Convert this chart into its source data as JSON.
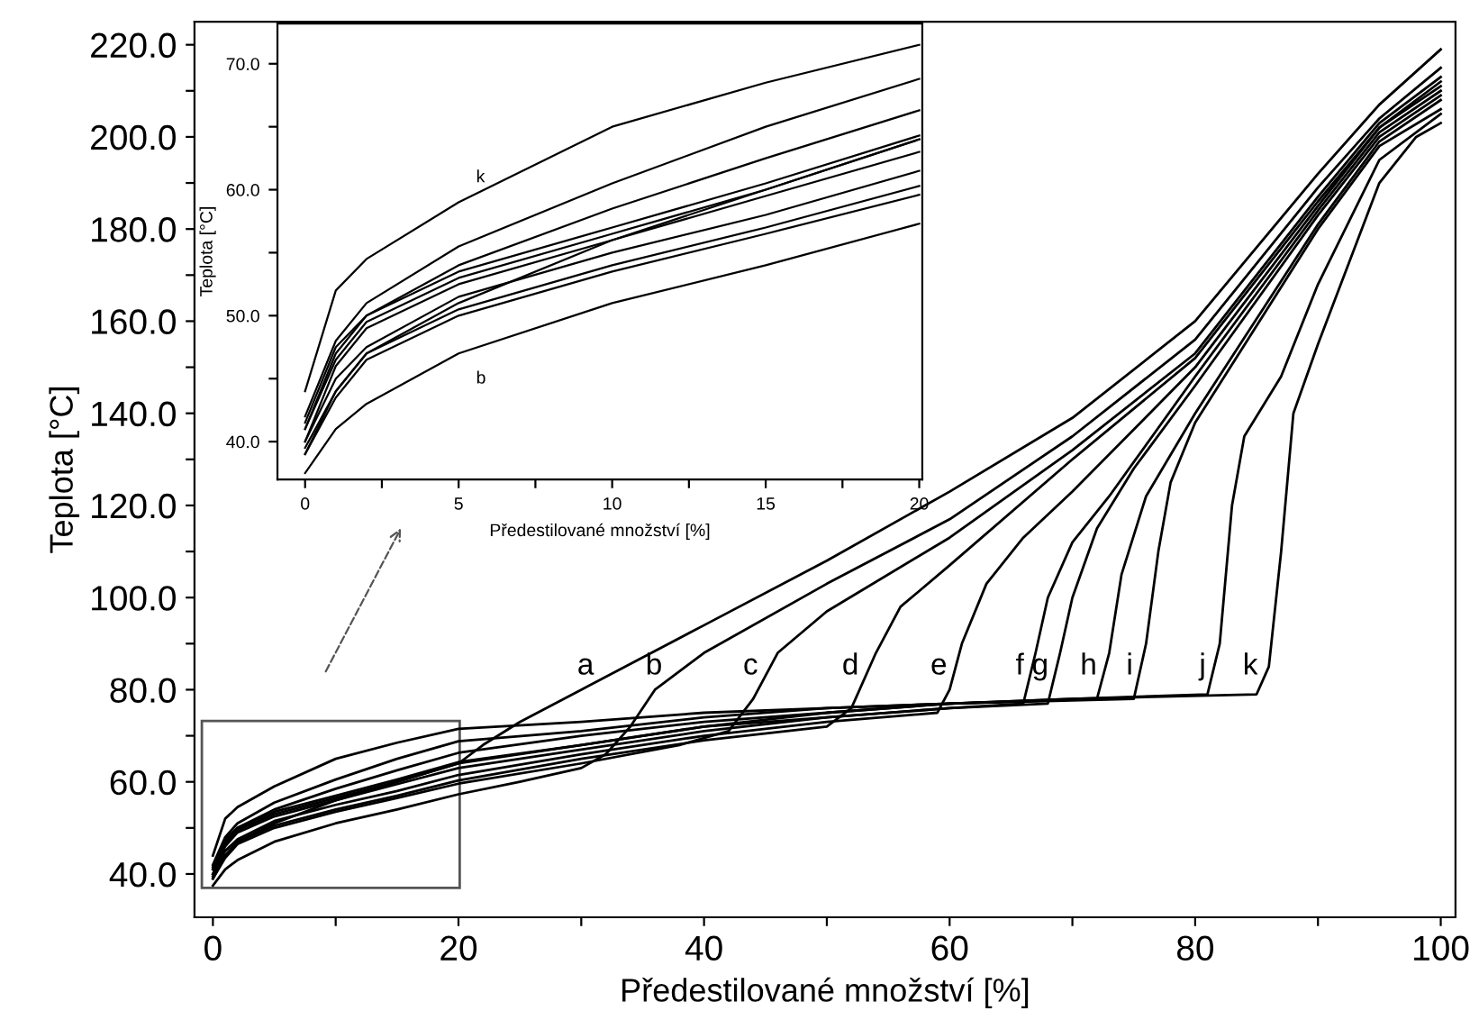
{
  "chart_data": [
    {
      "type": "line",
      "xlabel": "Předestilované množství [%]",
      "ylabel": "Teplota [°C]",
      "xlim": [
        -1.5,
        101.2
      ],
      "ylim": [
        30.6,
        225
      ],
      "xticks": [
        0,
        {
          "value": 10,
          "label": null
        },
        20,
        {
          "value": 30,
          "label": null
        },
        40,
        {
          "value": 50,
          "label": null
        },
        60,
        {
          "value": 70,
          "label": null
        },
        80,
        {
          "value": 90,
          "label": null
        },
        100
      ],
      "yticks": [
        {
          "value": 40,
          "label": "40.0"
        },
        {
          "value": 50,
          "label": null
        },
        {
          "value": 60,
          "label": "60.0"
        },
        {
          "value": 70,
          "label": null
        },
        {
          "value": 80,
          "label": "80.0"
        },
        {
          "value": 90,
          "label": null
        },
        {
          "value": 100,
          "label": "100.0"
        },
        {
          "value": 110,
          "label": null
        },
        {
          "value": 120,
          "label": "120.0"
        },
        {
          "value": 130,
          "label": null
        },
        {
          "value": 140,
          "label": "140.0"
        },
        {
          "value": 150,
          "label": null
        },
        {
          "value": 160,
          "label": "160.0"
        },
        {
          "value": 170,
          "label": null
        },
        {
          "value": 180,
          "label": "180.0"
        },
        {
          "value": 190,
          "label": null
        },
        {
          "value": 200,
          "label": "200.0"
        },
        {
          "value": 210,
          "label": null
        },
        {
          "value": 220,
          "label": "220.0"
        }
      ],
      "grid": false,
      "legend": false,
      "marker": "none",
      "line_style": "solid",
      "series": [
        {
          "name": "a",
          "color": "#000000",
          "x": [
            0,
            1,
            2,
            5,
            10,
            15,
            20,
            22,
            25,
            30,
            40,
            50,
            60,
            70,
            80,
            85,
            90,
            95,
            100
          ],
          "values": [
            39,
            44,
            47,
            51,
            56,
            60,
            64,
            68,
            73,
            80,
            94,
            108,
            123,
            139,
            160,
            176,
            192,
            207,
            219
          ]
        },
        {
          "name": "b",
          "color": "#000000",
          "x": [
            0,
            1,
            2,
            5,
            10,
            15,
            20,
            25,
            30,
            32,
            34,
            36,
            40,
            50,
            60,
            70,
            80,
            90,
            95,
            100
          ],
          "values": [
            37.5,
            41,
            43,
            47,
            51,
            54,
            57.3,
            60,
            63,
            66,
            72,
            80,
            88,
            103,
            117,
            135,
            156,
            189,
            204,
            215
          ]
        },
        {
          "name": "c",
          "color": "#000000",
          "x": [
            0,
            1,
            2,
            5,
            10,
            15,
            20,
            30,
            38,
            42,
            44,
            46,
            50,
            60,
            70,
            80,
            90,
            95,
            100
          ],
          "values": [
            39,
            43.5,
            46.5,
            50,
            53.5,
            56.5,
            59.6,
            64,
            68,
            71,
            78,
            88,
            97,
            113,
            132,
            153,
            187,
            203,
            213
          ]
        },
        {
          "name": "d",
          "color": "#000000",
          "x": [
            0,
            1,
            2,
            5,
            10,
            15,
            20,
            30,
            40,
            50,
            52,
            54,
            56,
            60,
            70,
            80,
            90,
            95,
            100
          ],
          "values": [
            39.5,
            44,
            47,
            50.5,
            54,
            57,
            60.3,
            65,
            69,
            72,
            76,
            88,
            98,
            107,
            130,
            152,
            186,
            202,
            212
          ]
        },
        {
          "name": "e",
          "color": "#000000",
          "x": [
            0,
            1,
            2,
            5,
            10,
            15,
            20,
            30,
            40,
            50,
            59,
            60,
            61,
            63,
            66,
            70,
            80,
            90,
            95,
            100
          ],
          "values": [
            40,
            45,
            47.5,
            51.5,
            55,
            58,
            61.5,
            66,
            70,
            73,
            75,
            80,
            90,
            103,
            113,
            123,
            150,
            185,
            202,
            211
          ]
        },
        {
          "name": "f",
          "color": "#000000",
          "x": [
            0,
            1,
            2,
            5,
            10,
            15,
            20,
            30,
            40,
            50,
            60,
            66,
            67,
            68,
            70,
            73,
            80,
            90,
            95,
            100
          ],
          "values": [
            40,
            46,
            49,
            52.5,
            56,
            59.5,
            63,
            67,
            71,
            74,
            76,
            77,
            88,
            100,
            112,
            122,
            148,
            184,
            201,
            210
          ]
        },
        {
          "name": "g",
          "color": "#000000",
          "x": [
            0,
            1,
            2,
            5,
            10,
            15,
            20,
            30,
            40,
            50,
            60,
            68,
            69,
            70,
            72,
            75,
            80,
            90,
            95,
            100
          ],
          "values": [
            41,
            46.5,
            49.5,
            53,
            56.5,
            60,
            64,
            68,
            72,
            74,
            76,
            77,
            88,
            100,
            115,
            128,
            146,
            183,
            200,
            209
          ]
        },
        {
          "name": "h",
          "color": "#000000",
          "x": [
            0,
            1,
            2,
            5,
            10,
            15,
            20,
            30,
            40,
            50,
            60,
            72,
            73,
            74,
            76,
            80,
            90,
            95,
            100
          ],
          "values": [
            41,
            47,
            50,
            53.5,
            57,
            60.5,
            64.3,
            68,
            72,
            75,
            77,
            78,
            88,
            105,
            122,
            140,
            181,
            199,
            208
          ]
        },
        {
          "name": "i",
          "color": "#000000",
          "x": [
            0,
            1,
            2,
            5,
            10,
            15,
            20,
            30,
            40,
            50,
            60,
            75,
            76,
            77,
            78,
            80,
            90,
            95,
            100
          ],
          "values": [
            41.5,
            47.5,
            50,
            54,
            58.5,
            62.5,
            66.3,
            70,
            73,
            75,
            77,
            78,
            90,
            110,
            125,
            138,
            180,
            198,
            206
          ]
        },
        {
          "name": "j",
          "color": "#000000",
          "x": [
            0,
            1,
            2,
            5,
            10,
            15,
            20,
            30,
            40,
            50,
            60,
            70,
            81,
            82,
            83,
            84,
            87,
            90,
            95,
            100
          ],
          "values": [
            42,
            48,
            51,
            55.5,
            60.5,
            65,
            68.8,
            71,
            74,
            76,
            77,
            78,
            79,
            90,
            120,
            135,
            148,
            168,
            195,
            205
          ]
        },
        {
          "name": "k",
          "color": "#000000",
          "x": [
            0,
            1,
            2,
            5,
            10,
            15,
            20,
            30,
            40,
            50,
            60,
            70,
            85,
            86,
            87,
            88,
            90,
            95,
            98,
            100
          ],
          "values": [
            44,
            52,
            54.5,
            59,
            65,
            68.5,
            71.5,
            73,
            75,
            76,
            77,
            78,
            79,
            85,
            110,
            140,
            155,
            190,
            200,
            203
          ]
        }
      ]
    },
    {
      "type": "line",
      "xlabel": "Předestilované množství [%]",
      "ylabel": "Teplota [°C]",
      "xlim": [
        -0.9,
        20.1
      ],
      "ylim": [
        37.0,
        73.2
      ],
      "xticks": [
        0,
        {
          "value": 2.5,
          "label": null
        },
        5,
        {
          "value": 7.5,
          "label": null
        },
        10,
        {
          "value": 12.5,
          "label": null
        },
        15,
        {
          "value": 17.5,
          "label": null
        },
        20
      ],
      "yticks": [
        {
          "value": 40,
          "label": "40.0"
        },
        {
          "value": 45,
          "label": null
        },
        {
          "value": 50,
          "label": "50.0"
        },
        {
          "value": 55,
          "label": null
        },
        {
          "value": 60,
          "label": "60.0"
        },
        {
          "value": 65,
          "label": null
        },
        {
          "value": 70,
          "label": "70.0"
        }
      ],
      "grid": false,
      "legend": false,
      "marker": "none",
      "line_style": "solid",
      "x": [
        0,
        1,
        2,
        5,
        10,
        15,
        20
      ],
      "series": [
        {
          "color": "#000000",
          "values": [
            39,
            44,
            47,
            51,
            56,
            60,
            64
          ]
        },
        {
          "name": "b",
          "color": "#000000",
          "values": [
            37.5,
            41,
            43,
            47,
            51,
            54,
            57.3
          ]
        },
        {
          "color": "#000000",
          "values": [
            39,
            43.5,
            46.5,
            50,
            53.5,
            56.5,
            59.6
          ]
        },
        {
          "color": "#000000",
          "values": [
            39.5,
            44,
            47,
            50.5,
            54,
            57,
            60.3
          ]
        },
        {
          "color": "#000000",
          "values": [
            40,
            45,
            47.5,
            51.5,
            55,
            58,
            61.5
          ]
        },
        {
          "color": "#000000",
          "values": [
            40,
            46,
            49,
            52.5,
            56,
            59.5,
            63
          ]
        },
        {
          "color": "#000000",
          "values": [
            41,
            46.5,
            49.5,
            53,
            56.5,
            60,
            64
          ]
        },
        {
          "color": "#000000",
          "values": [
            41,
            47,
            50,
            53.5,
            57,
            60.5,
            64.3
          ]
        },
        {
          "color": "#000000",
          "values": [
            41.5,
            47.5,
            50,
            54,
            58.5,
            62.5,
            66.3
          ]
        },
        {
          "color": "#000000",
          "values": [
            42,
            48,
            51,
            55.5,
            60.5,
            65,
            68.8
          ]
        },
        {
          "name": "k",
          "color": "#000000",
          "values": [
            44,
            52,
            54.5,
            59,
            65,
            68.5,
            71.5
          ]
        }
      ]
    }
  ]
}
